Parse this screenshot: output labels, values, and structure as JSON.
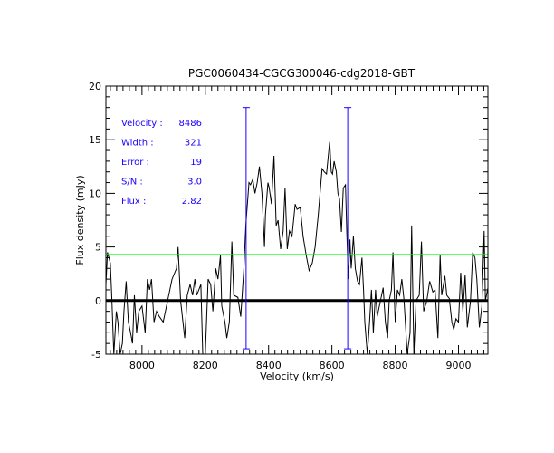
{
  "chart_data": {
    "type": "line",
    "title": "PGC0060434-CGCG300046-cdg2018-GBT",
    "xlabel": "Velocity (km/s)",
    "ylabel": "Flux density (mJy)",
    "xlim": [
      7886,
      9093
    ],
    "ylim": [
      -5,
      20
    ],
    "xticks": [
      8000,
      8200,
      8400,
      8600,
      8800,
      9000
    ],
    "yticks": [
      -5,
      0,
      5,
      10,
      15,
      20
    ],
    "grid": false,
    "zero_line": 0,
    "threshold_line": {
      "value": 4.3,
      "color": "#00ff00"
    },
    "markers": {
      "velocities": [
        8329,
        8650
      ],
      "top": 18,
      "bottom": -4.5,
      "color": "#1a00ff"
    },
    "annotations": [
      {
        "label": "Velocity :",
        "value": "8486"
      },
      {
        "label": "Width :",
        "value": "321"
      },
      {
        "label": "Error :",
        "value": "19"
      },
      {
        "label": "S/N :",
        "value": "3.0"
      },
      {
        "label": "Flux :",
        "value": "2.82"
      }
    ],
    "series": [
      {
        "name": "spectrum",
        "color": "#000000",
        "x": [
          7886,
          7891,
          7900,
          7905,
          7911,
          7919,
          7924,
          7931,
          7938,
          7943,
          7950,
          7957,
          7964,
          7970,
          7976,
          7983,
          7990,
          8000,
          8010,
          8017,
          8024,
          8030,
          8038,
          8046,
          8055,
          8067,
          8081,
          8095,
          8109,
          8114,
          8122,
          8135,
          8143,
          8152,
          8160,
          8167,
          8173,
          8186,
          8192,
          8200,
          8209,
          8217,
          8224,
          8233,
          8240,
          8248,
          8252,
          8262,
          8268,
          8276,
          8284,
          8290,
          8303,
          8312,
          8322,
          8328,
          8338,
          8343,
          8350,
          8357,
          8364,
          8371,
          8379,
          8387,
          8390,
          8398,
          8402,
          8409,
          8417,
          8424,
          8430,
          8438,
          8446,
          8452,
          8459,
          8466,
          8474,
          8484,
          8490,
          8500,
          8509,
          8519,
          8528,
          8538,
          8547,
          8557,
          8569,
          8576,
          8583,
          8588,
          8593,
          8598,
          8602,
          8607,
          8614,
          8619,
          8624,
          8630,
          8636,
          8643,
          8647,
          8652,
          8657,
          8661,
          8668,
          8674,
          8681,
          8687,
          8695,
          8700,
          8704,
          8712,
          8719,
          8725,
          8731,
          8738,
          8743,
          8750,
          8757,
          8762,
          8769,
          8776,
          8781,
          8788,
          8793,
          8800,
          8807,
          8814,
          8821,
          8828,
          8838,
          8847,
          8852,
          8859,
          8866,
          8876,
          8883,
          8890,
          8900,
          8909,
          8919,
          8926,
          8935,
          8942,
          8947,
          8957,
          8963,
          8971,
          8979,
          8985,
          8992,
          9000,
          9007,
          9014,
          9021,
          9028,
          9038,
          9045,
          9052,
          9058,
          9066,
          9074,
          9081,
          9085,
          9093
        ],
        "y": [
          1.5,
          4.5,
          3.5,
          0,
          -5,
          -1,
          -2,
          -5,
          -4,
          -1,
          1.8,
          -2,
          -3,
          -4,
          0.5,
          -3,
          -1,
          -0.5,
          -3,
          2,
          1,
          2,
          -2,
          -1,
          -1.5,
          -2,
          0,
          2,
          3,
          5,
          0,
          -3.5,
          0.5,
          1.5,
          0.5,
          2,
          0.5,
          1.5,
          -5,
          -5,
          2,
          1.5,
          -1,
          3,
          2,
          4.2,
          -0.5,
          -2,
          -3.5,
          -2,
          5.5,
          0.5,
          0.3,
          -1.5,
          3,
          7,
          11,
          10.8,
          11.3,
          10,
          11,
          12.5,
          10,
          5,
          8,
          11,
          10.5,
          9,
          13.5,
          7,
          7.5,
          4.8,
          6.5,
          10.5,
          4.8,
          6.5,
          6,
          9,
          8.5,
          8.7,
          6,
          4.2,
          2.8,
          3.5,
          5,
          8,
          12.3,
          12,
          11.8,
          13.3,
          14.8,
          12,
          11.8,
          13,
          12,
          10,
          9.5,
          6.4,
          10.5,
          10.8,
          6.4,
          2,
          5.7,
          3,
          6,
          3,
          1.8,
          1.5,
          4,
          1,
          -2,
          -5,
          -2,
          1,
          -3,
          1,
          -1.5,
          -0.5,
          0.5,
          1.2,
          -2,
          -3.5,
          0,
          1,
          4.5,
          -2,
          1,
          0.5,
          2,
          0,
          -5,
          -3,
          7,
          -5,
          0,
          0.5,
          5.5,
          -1,
          0,
          1.8,
          0.8,
          1,
          -3.5,
          4.2,
          0.5,
          2.3,
          0.5,
          0.2,
          -2,
          -2.7,
          -1.7,
          -2,
          2.6,
          -1,
          2.4,
          -2.5,
          0,
          4.5,
          4,
          2,
          -2.5,
          -0.5,
          6.5,
          0,
          1.2
        ]
      }
    ]
  }
}
